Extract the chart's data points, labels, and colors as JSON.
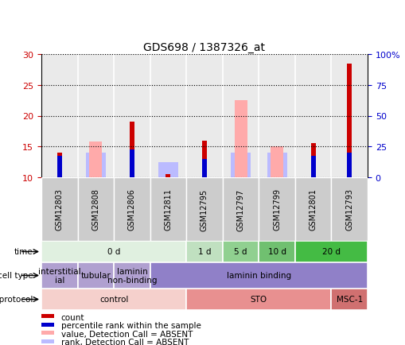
{
  "title": "GDS698 / 1387326_at",
  "samples": [
    "GSM12803",
    "GSM12808",
    "GSM12806",
    "GSM12811",
    "GSM12795",
    "GSM12797",
    "GSM12799",
    "GSM12801",
    "GSM12793"
  ],
  "count_values": [
    14.0,
    0,
    19.0,
    10.5,
    16.0,
    0,
    0,
    15.5,
    28.5
  ],
  "percentile_values": [
    13.5,
    0,
    14.5,
    0,
    13.0,
    0,
    0,
    13.5,
    14.0
  ],
  "absent_value_values": [
    0,
    15.8,
    0,
    0,
    0,
    22.5,
    15.0,
    0,
    0
  ],
  "absent_rank_values": [
    0,
    14.0,
    0,
    12.5,
    0,
    14.0,
    14.0,
    0,
    0
  ],
  "ylim": [
    10,
    30
  ],
  "yticks_left": [
    10,
    15,
    20,
    25,
    30
  ],
  "yticks_right_labels": [
    "0",
    "25",
    "50",
    "75",
    "100%"
  ],
  "ylabel_left_color": "#cc0000",
  "ylabel_right_color": "#0000cc",
  "color_count": "#cc0000",
  "color_percentile": "#0000cc",
  "color_absent_value": "#ffaaaa",
  "color_absent_rank": "#bbbbff",
  "sample_box_color": "#cccccc",
  "time_groups": [
    {
      "label": "0 d",
      "start": 0,
      "end": 4,
      "color": "#e0f0e0"
    },
    {
      "label": "1 d",
      "start": 4,
      "end": 5,
      "color": "#c0e0c0"
    },
    {
      "label": "5 d",
      "start": 5,
      "end": 6,
      "color": "#90d090"
    },
    {
      "label": "10 d",
      "start": 6,
      "end": 7,
      "color": "#70c070"
    },
    {
      "label": "20 d",
      "start": 7,
      "end": 9,
      "color": "#44bb44"
    }
  ],
  "celltype_groups": [
    {
      "label": "interstitial\nial",
      "start": 0,
      "end": 1,
      "color": "#b0a0d0"
    },
    {
      "label": "tubular",
      "start": 1,
      "end": 2,
      "color": "#b0a0d0"
    },
    {
      "label": "laminin\nnon-binding",
      "start": 2,
      "end": 3,
      "color": "#b0a0d0"
    },
    {
      "label": "laminin binding",
      "start": 3,
      "end": 9,
      "color": "#9080c8"
    }
  ],
  "growth_groups": [
    {
      "label": "control",
      "start": 0,
      "end": 4,
      "color": "#f5d0cc"
    },
    {
      "label": "STO",
      "start": 4,
      "end": 8,
      "color": "#e89090"
    },
    {
      "label": "MSC-1",
      "start": 8,
      "end": 9,
      "color": "#d07070"
    }
  ],
  "legend_items": [
    {
      "color": "#cc0000",
      "label": "count"
    },
    {
      "color": "#0000cc",
      "label": "percentile rank within the sample"
    },
    {
      "color": "#ffaaaa",
      "label": "value, Detection Call = ABSENT"
    },
    {
      "color": "#bbbbff",
      "label": "rank, Detection Call = ABSENT"
    }
  ]
}
